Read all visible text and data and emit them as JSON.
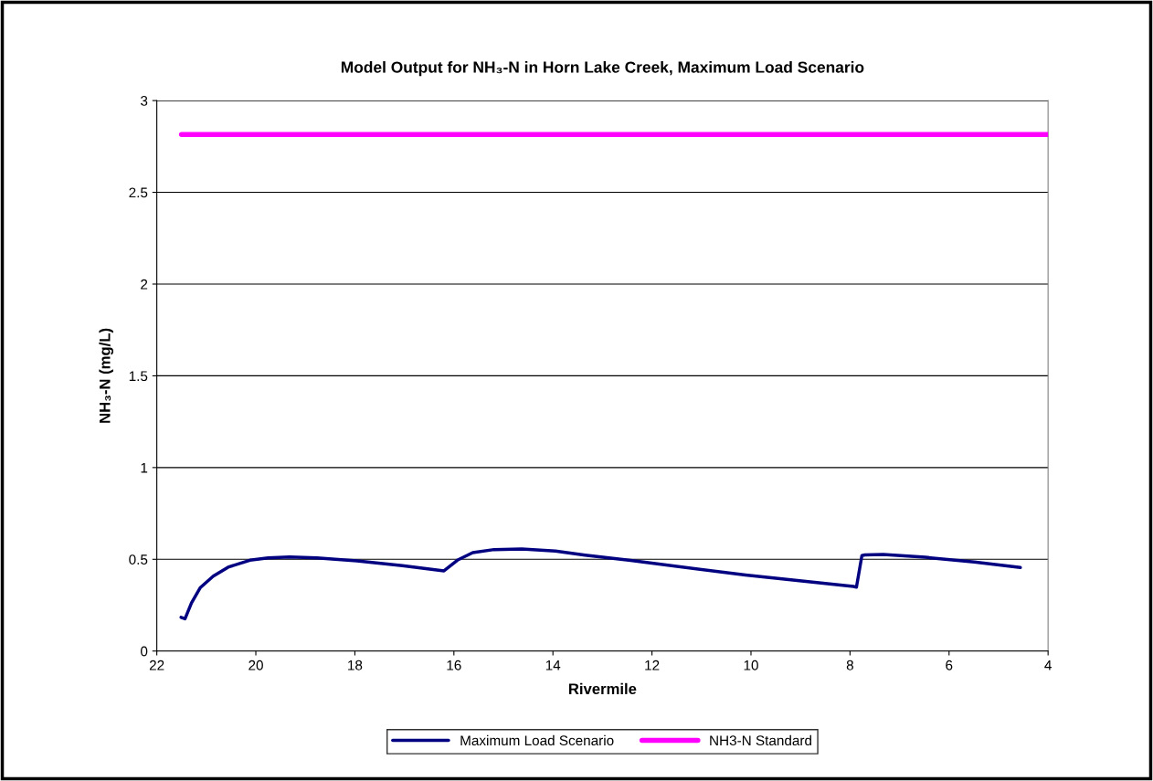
{
  "chart_data": {
    "type": "line",
    "title": "Model Output for NH₃-N in Horn Lake Creek, Maximum Load Scenario",
    "xlabel": "Rivermile",
    "ylabel": "NH₃-N (mg/L)",
    "series": [
      {
        "name": "Maximum Load Scenario",
        "color": "#000080",
        "x": [
          21.51,
          21.43,
          21.3,
          21.12,
          20.86,
          20.56,
          20.12,
          19.75,
          19.32,
          18.77,
          17.96,
          17.04,
          16.2,
          15.93,
          15.62,
          15.19,
          14.63,
          13.95,
          13.35,
          12.43,
          10.11,
          7.93,
          7.87,
          7.76,
          7.7,
          7.33,
          6.48,
          5.49,
          4.56
        ],
        "values": [
          0.184,
          0.176,
          0.262,
          0.346,
          0.408,
          0.457,
          0.495,
          0.508,
          0.513,
          0.508,
          0.492,
          0.465,
          0.437,
          0.495,
          0.536,
          0.553,
          0.556,
          0.545,
          0.523,
          0.494,
          0.414,
          0.352,
          0.348,
          0.52,
          0.524,
          0.526,
          0.511,
          0.485,
          0.455
        ]
      },
      {
        "name": "NH3-N Standard",
        "color": "#ff00ff",
        "x": [
          21.5,
          4
        ],
        "values": [
          2.815,
          2.815
        ]
      }
    ],
    "xlim": [
      22,
      4
    ],
    "xticks": [
      22,
      20,
      18,
      16,
      14,
      12,
      10,
      8,
      6,
      4
    ],
    "ylim": [
      0,
      3
    ],
    "yticks": [
      0,
      0.5,
      1,
      1.5,
      2,
      2.5,
      3
    ],
    "grid": "y",
    "legend": "bottom",
    "marker": "none",
    "line_style": "solid"
  }
}
